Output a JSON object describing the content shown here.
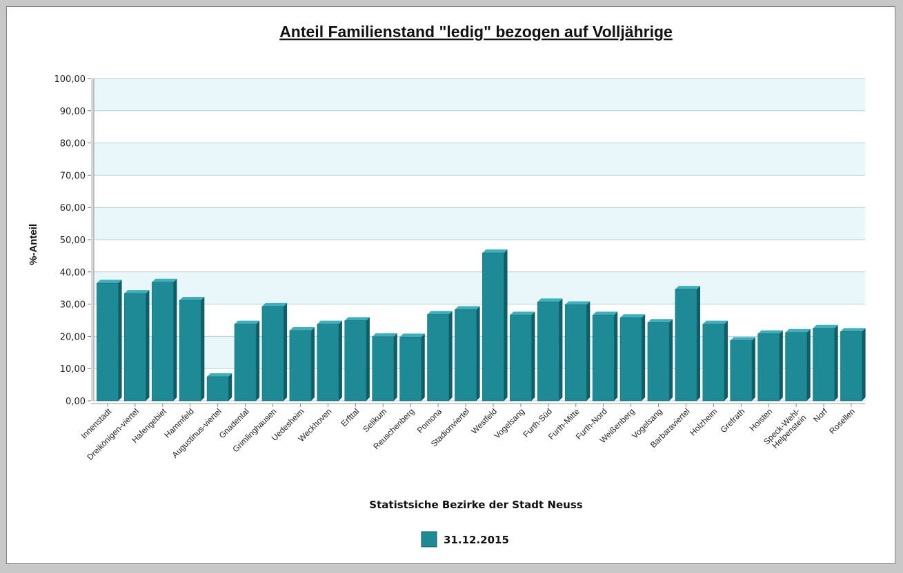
{
  "chart_data": {
    "type": "bar",
    "title": "Anteil Familienstand \"ledig\" bezogen auf Volljährige",
    "xlabel": "Statistsiche Bezirke der Stadt Neuss",
    "ylabel": "%-Anteil",
    "ylim": [
      0,
      100
    ],
    "yticks": [
      0,
      10,
      20,
      30,
      40,
      50,
      60,
      70,
      80,
      90,
      100
    ],
    "ytick_labels": [
      "0,00",
      "10,00",
      "20,00",
      "30,00",
      "40,00",
      "50,00",
      "60,00",
      "70,00",
      "80,00",
      "90,00",
      "100,00"
    ],
    "grid": true,
    "legend_position": "bottom",
    "categories": [
      [
        "Innenstadt"
      ],
      [
        "Dreikönigen-viertel"
      ],
      [
        "Hafengebiet"
      ],
      [
        "Hammfeld"
      ],
      [
        "Augustinus-viertel"
      ],
      [
        "Gnadental"
      ],
      [
        "Grimlinghausen"
      ],
      [
        "Uedesheim"
      ],
      [
        "Weckhoven"
      ],
      [
        "Erfttal"
      ],
      [
        "Selikum"
      ],
      [
        "Reuschenberg"
      ],
      [
        "Pomona"
      ],
      [
        "Stadionviertel"
      ],
      [
        "Westfeld"
      ],
      [
        "Vogelsang"
      ],
      [
        "Furth-Süd"
      ],
      [
        "Furth-Mitte"
      ],
      [
        "Furth-Nord"
      ],
      [
        "Weißenberg"
      ],
      [
        "Vogelsang"
      ],
      [
        "Barbaraviertel"
      ],
      [
        "Holzheim"
      ],
      [
        "Grefrath"
      ],
      [
        "Hoisten"
      ],
      [
        "Speck-Wehl-",
        "Helpenstein"
      ],
      [
        "Norf"
      ],
      [
        "Rosellen"
      ]
    ],
    "series": [
      {
        "name": "31.12.2015",
        "color": "#1e8a96",
        "values": [
          36.5,
          33.3,
          36.8,
          31.2,
          7.5,
          23.8,
          29.3,
          21.8,
          23.8,
          24.9,
          19.9,
          19.8,
          26.8,
          28.3,
          45.9,
          26.6,
          30.7,
          29.8,
          26.6,
          25.8,
          24.3,
          34.6,
          23.8,
          18.7,
          20.8,
          21.2,
          22.5,
          21.5
        ]
      }
    ]
  }
}
